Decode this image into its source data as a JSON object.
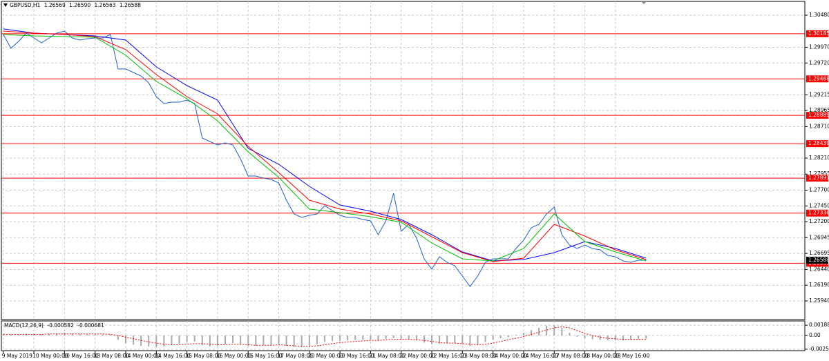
{
  "chart_data": [
    {
      "type": "line",
      "title": "GBPUSD,H1",
      "ohlc": [
        1.26569,
        {
          "value": 1.2659,
          "label": "1.26590"
        },
        1.26563,
        1.26588
      ],
      "xlim": [
        -1,
        419
      ],
      "xticks": [
        {
          "value": 0,
          "label": "9 May 2019"
        },
        {
          "value": 16,
          "label": "10 May 00:00"
        },
        {
          "value": 32,
          "label": "10 May 16:00"
        },
        {
          "value": 48,
          "label": "13 May 08:00"
        },
        {
          "value": 64,
          "label": "14 May 00:00"
        },
        {
          "value": 80,
          "label": "14 May 16:00"
        },
        {
          "value": 96,
          "label": "15 May 08:00"
        },
        {
          "value": 112,
          "label": "16 May 00:00"
        },
        {
          "value": 128,
          "label": "16 May 16:00"
        },
        {
          "value": 144,
          "label": "17 May 08:00"
        },
        {
          "value": 160,
          "label": "20 May 00:00"
        },
        {
          "value": 176,
          "label": "20 May 16:00"
        },
        {
          "value": 192,
          "label": "21 May 08:00"
        },
        {
          "value": 208,
          "label": "22 May 00:00"
        },
        {
          "value": 224,
          "label": "22 May 16:00"
        },
        {
          "value": 240,
          "label": "23 May 08:00"
        },
        {
          "value": 256,
          "label": "24 May 00:00"
        },
        {
          "value": 272,
          "label": "24 May 16:00"
        },
        {
          "value": 288,
          "label": "27 May 08:00"
        },
        {
          "value": 304,
          "label": "28 May 00:00"
        },
        {
          "value": 320,
          "label": "28 May 16:00"
        }
      ],
      "ylim": [
        1.25644,
        1.30699
      ],
      "yticks": [
        {
          "value": 1.3048,
          "label": "1.30480"
        },
        {
          "value": 1.2997,
          "label": "1.29970"
        },
        {
          "value": 1.2972,
          "label": "1.29720"
        },
        {
          "value": 1.29215,
          "label": "1.29215"
        },
        {
          "value": 1.28965,
          "label": "1.28965"
        },
        {
          "value": 1.2871,
          "label": "1.28710"
        },
        {
          "value": 1.2821,
          "label": "1.28210"
        },
        {
          "value": 1.27955,
          "label": "1.27955"
        },
        {
          "value": 1.277,
          "label": "1.27700"
        },
        {
          "value": 1.2745,
          "label": "1.27450"
        },
        {
          "value": 1.272,
          "label": "1.27200"
        },
        {
          "value": 1.26945,
          "label": "1.26945"
        },
        {
          "value": 1.26695,
          "label": "1.26695"
        },
        {
          "value": 1.2644,
          "label": "1.26440"
        },
        {
          "value": 1.2619,
          "label": "1.26190"
        },
        {
          "value": 1.2594,
          "label": "1.25940"
        }
      ],
      "grid": true,
      "levels": [
        1.30185,
        1.29468,
        1.28889,
        1.28439,
        1.27891,
        1.27336,
        1.26539
      ],
      "level_color": "#ff0000",
      "current_price": 1.26588,
      "x": [
        0,
        4,
        8,
        12,
        16,
        20,
        24,
        28,
        32,
        36,
        40,
        44,
        48,
        52,
        56,
        60,
        64,
        68,
        72,
        76,
        80,
        84,
        88,
        92,
        96,
        100,
        104,
        108,
        112,
        116,
        120,
        124,
        128,
        132,
        136,
        140,
        144,
        148,
        152,
        156,
        160,
        164,
        168,
        172,
        176,
        180,
        184,
        188,
        192,
        196,
        200,
        204,
        208,
        212,
        216,
        220,
        224,
        228,
        232,
        236,
        240,
        244,
        248,
        252,
        256,
        260,
        264,
        268,
        272,
        276,
        280,
        284,
        288,
        292,
        296,
        300,
        304,
        308,
        312,
        316,
        320,
        324,
        328,
        332,
        336
      ],
      "series": [
        {
          "color": "#1f5fcf",
          "values": [
            1.30173,
            1.29954,
            1.30063,
            1.30195,
            1.30118,
            1.30041,
            1.30118,
            1.30195,
            1.30228,
            1.30118,
            1.30085,
            1.30107,
            1.30118,
            1.30118,
            1.30173,
            1.29625,
            1.29625,
            1.2957,
            1.29515,
            1.29405,
            1.29186,
            1.29076,
            1.29098,
            1.29098,
            1.29131,
            1.29076,
            1.28528,
            1.28473,
            1.28418,
            1.28451,
            1.28418,
            1.28199,
            1.27925,
            1.27925,
            1.27892,
            1.2787,
            1.27815,
            1.27541,
            1.27322,
            1.27267,
            1.273,
            1.27322,
            1.27453,
            1.27377,
            1.273,
            1.27267,
            1.27267,
            1.27234,
            1.27212,
            1.26993,
            1.27212,
            1.27651,
            1.27048,
            1.27157,
            1.26938,
            1.26609,
            1.26444,
            1.26642,
            1.26554,
            1.26499,
            1.26335,
            1.2617,
            1.26335,
            1.26554,
            1.26609,
            1.26609,
            1.26609,
            1.26773,
            1.26905,
            1.27102,
            1.27157,
            1.27322,
            1.27431,
            1.26993,
            1.26828,
            1.26773,
            1.26828,
            1.26773,
            1.26752,
            1.26664,
            1.26642,
            1.26576,
            1.26554,
            1.26587,
            1.26588
          ]
        },
        {
          "color": "#0000ff",
          "x": [
            0,
            16,
            32,
            48,
            64,
            80,
            96,
            112,
            128,
            144,
            160,
            176,
            192,
            208,
            224,
            240,
            256,
            272,
            288,
            304,
            320,
            336
          ],
          "values": [
            1.30261,
            1.30195,
            1.30173,
            1.30151,
            1.30085,
            1.29658,
            1.29361,
            1.29131,
            1.28364,
            1.28111,
            1.2776,
            1.27464,
            1.27366,
            1.27234,
            1.26993,
            1.26719,
            1.26576,
            1.26598,
            1.26708,
            1.26883,
            1.26773,
            1.2662
          ]
        },
        {
          "color": "#ff0000",
          "x": [
            0,
            16,
            32,
            48,
            64,
            80,
            96,
            112,
            128,
            144,
            160,
            176,
            192,
            208,
            224,
            240,
            256,
            272,
            288,
            304,
            320,
            336
          ],
          "values": [
            1.30228,
            1.30195,
            1.30173,
            1.3014,
            1.29932,
            1.29537,
            1.29186,
            1.28912,
            1.28396,
            1.2798,
            1.27541,
            1.27399,
            1.27322,
            1.27212,
            1.2696,
            1.26708,
            1.26565,
            1.2662,
            1.27157,
            1.26971,
            1.26752,
            1.26598
          ]
        },
        {
          "color": "#00c000",
          "x": [
            0,
            16,
            32,
            48,
            64,
            80,
            96,
            112,
            128,
            144,
            160,
            176,
            192,
            208,
            224,
            240,
            256,
            272,
            288,
            304,
            320,
            336
          ],
          "values": [
            1.30173,
            1.30151,
            1.3014,
            1.30129,
            1.29844,
            1.29427,
            1.29153,
            1.28802,
            1.28309,
            1.27903,
            1.27399,
            1.27344,
            1.27278,
            1.2719,
            1.26861,
            1.26609,
            1.26576,
            1.26773,
            1.27322,
            1.26883,
            1.26719,
            1.26576
          ]
        }
      ]
    },
    {
      "type": "macd",
      "title": "MACD(12,26,9)",
      "readout": [
        -0.000582,
        -0.000681
      ],
      "ylim": [
        -0.00278,
        0.00266
      ],
      "yticks": [
        0.001882,
        {
          "value": 0,
          "label": "0.00"
        },
        -0.002516
      ],
      "x": [
        0,
        4,
        8,
        12,
        16,
        20,
        24,
        28,
        32,
        36,
        40,
        44,
        48,
        52,
        56,
        60,
        64,
        68,
        72,
        76,
        80,
        84,
        88,
        92,
        96,
        100,
        104,
        108,
        112,
        116,
        120,
        124,
        128,
        132,
        136,
        140,
        144,
        148,
        152,
        156,
        160,
        164,
        168,
        172,
        176,
        180,
        184,
        188,
        192,
        196,
        200,
        204,
        208,
        212,
        216,
        220,
        224,
        228,
        232,
        236,
        240,
        244,
        248,
        252,
        256,
        260,
        264,
        268,
        272,
        276,
        280,
        284,
        288,
        292,
        296,
        300,
        304,
        308,
        312,
        316,
        320,
        324,
        328,
        332,
        336
      ],
      "series": [
        {
          "type": "bar",
          "color": "#a9a9a9",
          "values": [
            0.0003,
            0.0002,
            0.0001,
            0.0003,
            0.0003,
            0.0002,
            0.0003,
            0.0004,
            0.0005,
            0.0004,
            0.0003,
            0.0002,
            0.0002,
            0.0002,
            0.0001,
            -0.0008,
            -0.0014,
            -0.0017,
            -0.0019,
            -0.002,
            -0.0021,
            -0.002,
            -0.0018,
            -0.0015,
            -0.0012,
            -0.0011,
            -0.0018,
            -0.002,
            -0.0019,
            -0.0016,
            -0.0014,
            -0.0016,
            -0.0019,
            -0.0019,
            -0.0018,
            -0.0017,
            -0.0016,
            -0.0019,
            -0.0021,
            -0.0021,
            -0.0019,
            -0.0016,
            -0.0012,
            -0.001,
            -0.001,
            -0.0009,
            -0.0008,
            -0.0008,
            -0.0008,
            -0.001,
            -0.0006,
            -0.0005,
            -0.0007,
            -0.0007,
            -0.0009,
            -0.0013,
            -0.0016,
            -0.0015,
            -0.0014,
            -0.0014,
            -0.0016,
            -0.0019,
            -0.0017,
            -0.0012,
            -0.0008,
            -0.0005,
            -0.0003,
            0.0001,
            0.0005,
            0.001,
            0.0014,
            0.0018,
            0.0019,
            0.0014,
            0.0005,
            -0.0002,
            -0.0005,
            -0.0007,
            -0.0008,
            -0.0009,
            -0.0009,
            -0.0009,
            -0.0008,
            -0.0007,
            -0.000582
          ]
        },
        {
          "type": "line",
          "style": "dotted",
          "color": "#ff0000",
          "values": [
            0.0002,
            0.0002,
            0.0002,
            0.0002,
            0.0002,
            0.0002,
            0.0003,
            0.0003,
            0.0003,
            0.0003,
            0.0003,
            0.0003,
            0.0003,
            0.0003,
            0.0002,
            0,
            -0.0003,
            -0.0006,
            -0.0009,
            -0.0012,
            -0.0014,
            -0.0016,
            -0.0017,
            -0.0017,
            -0.0016,
            -0.0015,
            -0.0015,
            -0.0016,
            -0.0017,
            -0.0017,
            -0.0016,
            -0.0016,
            -0.0017,
            -0.0018,
            -0.0018,
            -0.0018,
            -0.0017,
            -0.0018,
            -0.0019,
            -0.002,
            -0.002,
            -0.0019,
            -0.0017,
            -0.0015,
            -0.0013,
            -0.0012,
            -0.0011,
            -0.001,
            -0.0009,
            -0.0009,
            -0.0008,
            -0.0007,
            -0.0007,
            -0.0007,
            -0.0008,
            -0.0009,
            -0.0011,
            -0.0013,
            -0.0014,
            -0.0014,
            -0.0015,
            -0.0016,
            -0.0017,
            -0.0016,
            -0.0014,
            -0.0011,
            -0.0008,
            -0.0005,
            -0.0002,
            0.0002,
            0.0006,
            0.001,
            0.0014,
            0.0016,
            0.0014,
            0.0009,
            0.0004,
            0,
            -0.0003,
            -0.0005,
            -0.0006,
            -0.0007,
            -0.0007,
            -0.0007,
            -0.000681
          ]
        }
      ]
    }
  ]
}
